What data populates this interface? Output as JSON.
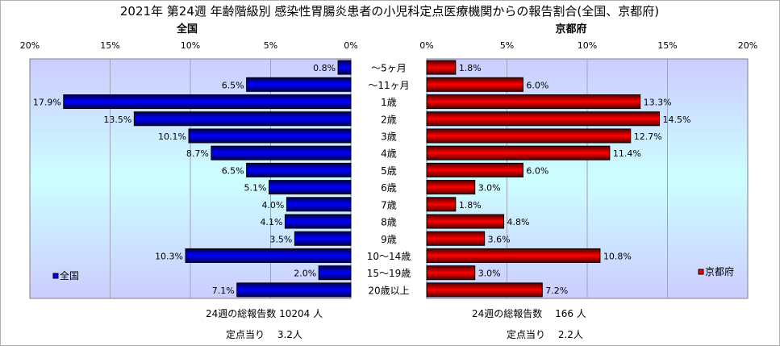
{
  "chart_data": {
    "type": "bar",
    "title": "2021年 第24週 年齢階級別 感染性胃腸炎患者の小児科定点医療機関からの報告割合(全国、京都府)",
    "categories": [
      "～5ヶ月",
      "～11ヶ月",
      "1歳",
      "2歳",
      "3歳",
      "4歳",
      "5歳",
      "6歳",
      "7歳",
      "8歳",
      "9歳",
      "10～14歳",
      "15～19歳",
      "20歳以上"
    ],
    "xlim": [
      0,
      20
    ],
    "ticks": [
      "0%",
      "5%",
      "10%",
      "15%",
      "20%"
    ],
    "grid": true,
    "series": [
      {
        "name": "全国",
        "subtitle": "全国",
        "color": "#0000ff",
        "legend": "bottom-left",
        "values": [
          0.8,
          6.5,
          17.9,
          13.5,
          10.1,
          8.7,
          6.5,
          5.1,
          4.0,
          4.1,
          3.5,
          10.3,
          2.0,
          7.1
        ],
        "labels": [
          "0.8%",
          "6.5%",
          "17.9%",
          "13.5%",
          "10.1%",
          "8.7%",
          "6.5%",
          "5.1%",
          "4.0%",
          "4.1%",
          "3.5%",
          "10.3%",
          "2.0%",
          "7.1%"
        ]
      },
      {
        "name": "京都府",
        "subtitle": "京都府",
        "color": "#ff0000",
        "legend": "bottom-right",
        "values": [
          1.8,
          6.0,
          13.3,
          14.5,
          12.7,
          11.4,
          6.0,
          3.0,
          1.8,
          4.8,
          3.6,
          10.8,
          3.0,
          7.2
        ],
        "labels": [
          "1.8%",
          "6.0%",
          "13.3%",
          "14.5%",
          "12.7%",
          "11.4%",
          "6.0%",
          "3.0%",
          "1.8%",
          "4.8%",
          "3.6%",
          "10.8%",
          "3.0%",
          "7.2%"
        ]
      }
    ]
  },
  "notes": {
    "national_total": "24週の総報告数 10204 人",
    "national_per_site": "定点当り　 3.2人",
    "kyoto_total": "24週の総報告数　 166 人",
    "kyoto_per_site": "定点当り　 2.2人"
  }
}
